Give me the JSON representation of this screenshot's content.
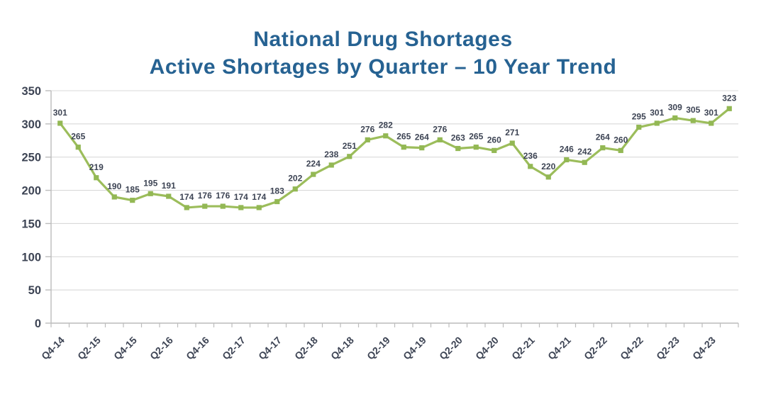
{
  "title": {
    "line1": "National Drug Shortages",
    "line2": "Active Shortages by Quarter – 10 Year Trend"
  },
  "chart_data": {
    "type": "line",
    "values": [
      301,
      265,
      219,
      190,
      185,
      195,
      191,
      174,
      176,
      176,
      174,
      174,
      183,
      202,
      224,
      238,
      251,
      276,
      282,
      265,
      264,
      276,
      263,
      265,
      260,
      271,
      236,
      220,
      246,
      242,
      264,
      260,
      295,
      301,
      309,
      305,
      301,
      323
    ],
    "x_tick_labels": [
      "Q4-14",
      "Q2-15",
      "Q4-15",
      "Q2-16",
      "Q4-16",
      "Q2-17",
      "Q4-17",
      "Q2-18",
      "Q4-18",
      "Q2-19",
      "Q4-19",
      "Q2-20",
      "Q4-20",
      "Q2-21",
      "Q4-21",
      "Q2-22",
      "Q4-22",
      "Q2-23",
      "Q4-23"
    ],
    "x_label_every": 2,
    "y_ticks": [
      0,
      50,
      100,
      150,
      200,
      250,
      300,
      350
    ],
    "ylim": [
      0,
      350
    ],
    "grid": true,
    "legend": "none",
    "data_labels": true,
    "colors": {
      "line": "#9cbd5b",
      "marker": "#93b854",
      "title": "#266292",
      "tick_label": "#3d4454",
      "data_label": "#3d4454",
      "grid": "#d9d9d9",
      "axis": "#bcbcbc"
    }
  }
}
